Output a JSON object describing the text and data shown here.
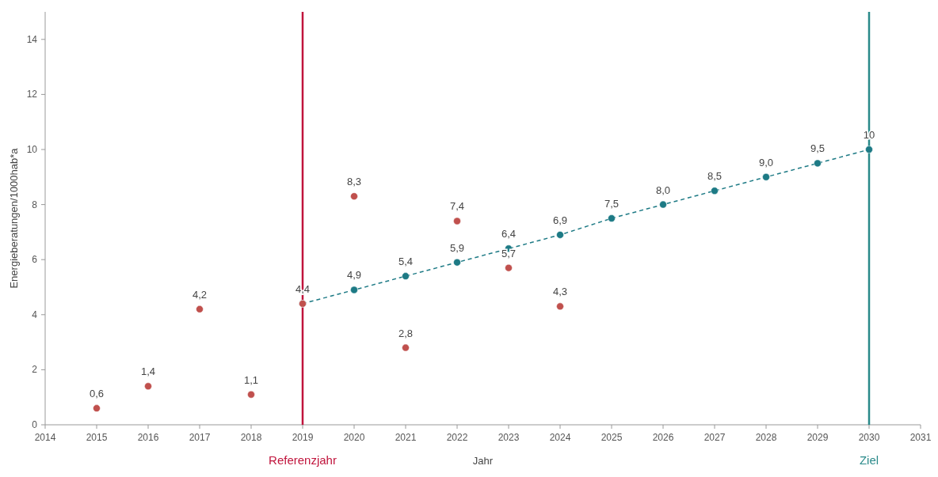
{
  "chart_data": {
    "type": "scatter",
    "xlabel": "Jahr",
    "ylabel": "Energieberatungen/1000hab*a",
    "xlim": [
      2014,
      2031
    ],
    "xticks": [
      2014,
      2015,
      2016,
      2017,
      2018,
      2019,
      2020,
      2021,
      2022,
      2023,
      2024,
      2025,
      2026,
      2027,
      2028,
      2029,
      2030,
      2031
    ],
    "ylim": [
      0,
      15
    ],
    "yticks": [
      0,
      2,
      4,
      6,
      8,
      10,
      12,
      14
    ],
    "grid": false,
    "marker": "circle",
    "series": [
      {
        "type": "line",
        "line_style": "dashed",
        "color": "#1d7a85",
        "x": [
          2019,
          2020,
          2021,
          2022,
          2023,
          2024,
          2025,
          2026,
          2027,
          2028,
          2029,
          2030
        ],
        "values": [
          4.4,
          4.9,
          5.4,
          5.9,
          6.4,
          6.9,
          7.5,
          8.0,
          8.5,
          9.0,
          9.5,
          10
        ],
        "value_labels": [
          null,
          "4,9",
          "5,4",
          "5,9",
          "6,4",
          "6,9",
          "7,5",
          "8,0",
          "8,5",
          "9,0",
          "9,5",
          "10"
        ]
      },
      {
        "type": "scatter",
        "color": "#c0504d",
        "x": [
          2015,
          2016,
          2017,
          2018,
          2019,
          2020,
          2021,
          2022,
          2023,
          2024
        ],
        "values": [
          0.6,
          1.4,
          4.2,
          1.1,
          4.4,
          8.3,
          2.8,
          7.4,
          5.7,
          4.3
        ],
        "value_labels": [
          "0,6",
          "1,4",
          "4,2",
          "1,1",
          "4,4",
          "8,3",
          "2,8",
          "7,4",
          "5,7",
          "4,3"
        ]
      }
    ],
    "ref_lines": [
      {
        "axis": "x",
        "value": 2019,
        "label": "Referenzjahr",
        "color": "#c0143c"
      },
      {
        "axis": "x",
        "value": 2030,
        "label": "Ziel",
        "color": "#2a8a8a"
      }
    ]
  }
}
